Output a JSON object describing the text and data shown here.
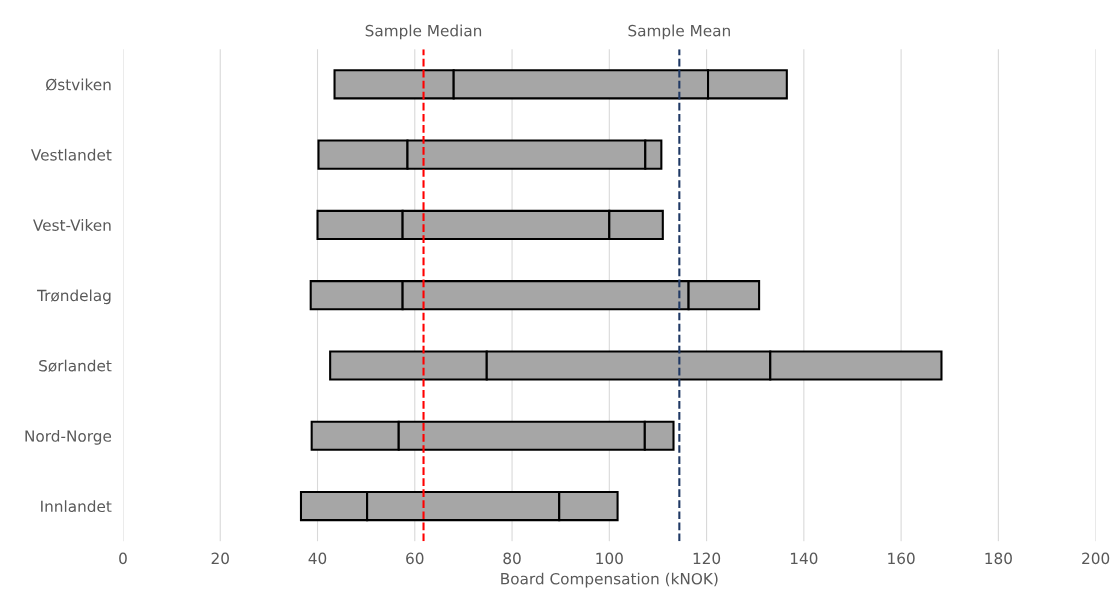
{
  "chart_data": {
    "type": "bar",
    "orientation": "horizontal",
    "xlabel": "Board Compensation (kNOK)",
    "categories": [
      "Østviken",
      "Vestlandet",
      "Vest-Viken",
      "Trøndelag",
      "Sørlandet",
      "Nord-Norge",
      "Innlandet"
    ],
    "series": [
      {
        "color": "#a6a6a6",
        "base": [
          43.5,
          40.2,
          40,
          38.6,
          42.6,
          38.8,
          36.6
        ],
        "values": [
          24.5,
          18.3,
          17.5,
          18.9,
          32.2,
          17.9,
          13.6
        ]
      },
      {
        "color": "#a6a6a6",
        "base": [
          68,
          58.5,
          57.5,
          57.5,
          74.8,
          56.7,
          50.2
        ],
        "values": [
          52.3,
          48.9,
          42.5,
          58.8,
          58.3,
          50.6,
          39.5
        ]
      },
      {
        "color": "#a6a6a6",
        "base": [
          120.3,
          107.4,
          100,
          116.3,
          133.1,
          107.3,
          89.7
        ],
        "values": [
          16.2,
          3.3,
          11,
          14.5,
          35.2,
          5.9,
          12
        ]
      }
    ],
    "xlim": [
      0,
      200
    ],
    "xticks": [
      0,
      20,
      40,
      60,
      80,
      100,
      120,
      140,
      160,
      180,
      200
    ],
    "grid": "x",
    "ref_lines": [
      {
        "axis": "x",
        "value": 61.8,
        "label": "Sample Median",
        "color": "#ff0000",
        "line_style": "dashed"
      },
      {
        "axis": "x",
        "value": 114.4,
        "label": "Sample Mean",
        "color": "#1f3864",
        "line_style": "dashed"
      }
    ]
  }
}
